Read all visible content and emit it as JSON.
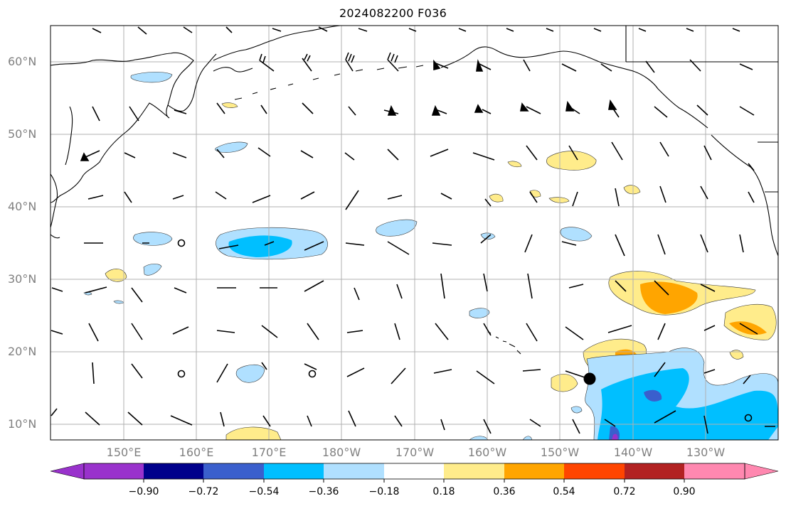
{
  "title": "2024082200 F036",
  "map": {
    "lat_labels": [
      "60°N",
      "50°N",
      "40°N",
      "30°N",
      "20°N",
      "10°N"
    ],
    "lon_labels": [
      "150°E",
      "160°E",
      "170°E",
      "180°W",
      "170°W",
      "160°W",
      "150°W",
      "140°W",
      "130°W"
    ],
    "land_color": "#ffffff",
    "coast_color": "#000000",
    "grid_color": "#b0b0b0"
  },
  "colorbar": {
    "ticks": [
      "−0.90",
      "−0.72",
      "−0.54",
      "−0.36",
      "−0.18",
      "0.18",
      "0.36",
      "0.54",
      "0.72",
      "0.90"
    ],
    "colors": [
      "#9932cc",
      "#00008b",
      "#3a5fcd",
      "#00bfff",
      "#b0e0ff",
      "#ffffff",
      "#ffec8b",
      "#ffa500",
      "#ff4500",
      "#b22222",
      "#ff88b0"
    ],
    "extend": "both"
  },
  "storm_marker": {
    "label": "tropical-cyclone-center"
  }
}
